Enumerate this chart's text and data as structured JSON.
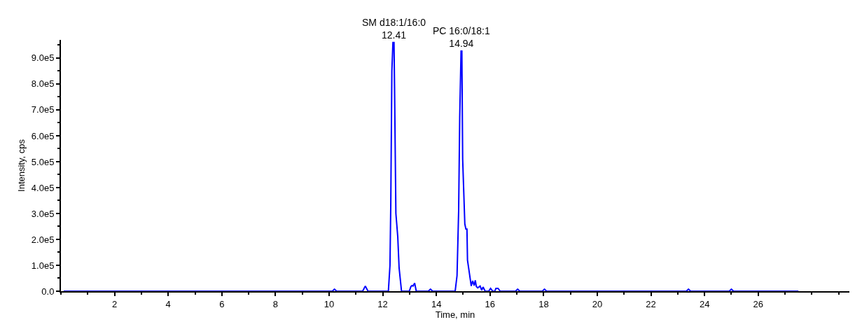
{
  "chart_data": {
    "type": "line",
    "xlabel": "Time, min",
    "ylabel": "Intensity, cps",
    "xlim": [
      0,
      29.4
    ],
    "ylim": [
      0,
      970000
    ],
    "xticks": [
      2,
      4,
      6,
      8,
      10,
      12,
      14,
      16,
      18,
      20,
      22,
      24,
      26
    ],
    "yticks": [
      {
        "value": 0,
        "label": "0.0"
      },
      {
        "value": 100000,
        "label": "1.0e5"
      },
      {
        "value": 200000,
        "label": "2.0e5"
      },
      {
        "value": 300000,
        "label": "3.0e5"
      },
      {
        "value": 400000,
        "label": "4.0e5"
      },
      {
        "value": 500000,
        "label": "5.0e5"
      },
      {
        "value": 600000,
        "label": "6.0e5"
      },
      {
        "value": 700000,
        "label": "7.0e5"
      },
      {
        "value": 800000,
        "label": "8.0e5"
      },
      {
        "value": 900000,
        "label": "9.0e5"
      }
    ],
    "marker": "none",
    "line_style": "solid",
    "series": [
      {
        "color": "#0000ff",
        "x": [
          0.1,
          10.12,
          10.2,
          10.28,
          11.25,
          11.35,
          11.45,
          12.21,
          12.27,
          12.3,
          12.34,
          12.38,
          12.42,
          12.44,
          12.49,
          12.56,
          12.61,
          12.7,
          12.99,
          13.05,
          13.09,
          13.13,
          13.19,
          13.25,
          13.7,
          13.78,
          13.86,
          14.7,
          14.77,
          14.83,
          14.87,
          14.92,
          14.95,
          14.98,
          15.06,
          15.1,
          15.14,
          15.16,
          15.23,
          15.3,
          15.35,
          15.41,
          15.45,
          15.49,
          15.54,
          15.63,
          15.69,
          15.74,
          15.82,
          15.95,
          16.02,
          16.1,
          16.18,
          16.22,
          16.3,
          16.38,
          16.95,
          17.03,
          17.11,
          17.95,
          18.03,
          18.11,
          23.32,
          23.4,
          23.48,
          24.92,
          25.0,
          25.08,
          27.5
        ],
        "values": [
          0,
          0,
          8000,
          0,
          0,
          20000,
          0,
          0,
          100000,
          340000,
          850000,
          960000,
          960000,
          790000,
          300000,
          210000,
          90000,
          0,
          0,
          18000,
          22000,
          20000,
          31000,
          0,
          0,
          8000,
          0,
          0,
          60000,
          310000,
          670000,
          927000,
          927000,
          510000,
          260000,
          240000,
          240000,
          120000,
          70000,
          20000,
          40000,
          22000,
          42000,
          18000,
          13000,
          20000,
          4000,
          16000,
          0,
          0,
          11000,
          0,
          0,
          11000,
          11000,
          0,
          0,
          8000,
          0,
          0,
          8000,
          0,
          0,
          8000,
          0,
          0,
          8000,
          0,
          0
        ]
      }
    ],
    "annotations": [
      {
        "text": "SM d18:1/16:0\n12.41",
        "x": 12.41,
        "y": 960000
      },
      {
        "text": "PC 16:0/18:1\n14.94",
        "x": 14.94,
        "y": 927000
      }
    ]
  }
}
